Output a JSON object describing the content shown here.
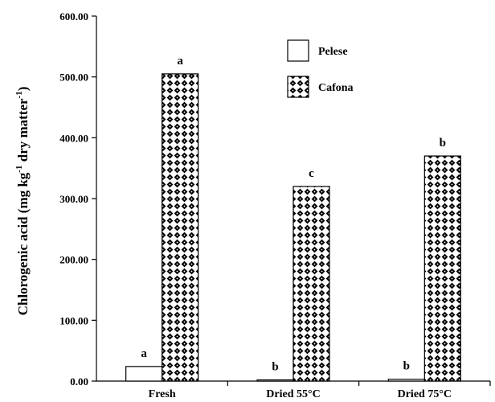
{
  "chart_data": {
    "type": "bar",
    "title": "",
    "xlabel": "",
    "ylabel": "Chlorogenic acid (mg kg",
    "ylabel_sup": "-1",
    "ylabel_tail": " dry matter",
    "ylabel_tail_sup": "-1",
    "ylabel_close": ")",
    "ylim": [
      0,
      600
    ],
    "yticks": [
      0,
      100,
      200,
      300,
      400,
      500,
      600
    ],
    "ytick_labels": [
      "0.00",
      "100.00",
      "200.00",
      "300.00",
      "400.00",
      "500.00",
      "600.00"
    ],
    "categories": [
      "Fresh",
      "Dried 55°C",
      "Dried 75°C"
    ],
    "series": [
      {
        "name": "Pelese",
        "values": [
          24,
          2,
          3
        ],
        "letters": [
          "a",
          "b",
          "b"
        ],
        "fill": "white"
      },
      {
        "name": "Cafona",
        "values": [
          505,
          320,
          370
        ],
        "letters": [
          "a",
          "c",
          "b"
        ],
        "fill": "pattern"
      }
    ],
    "legend_position": "top-right",
    "grid": false,
    "colors": {
      "axis": "#000000",
      "bar_stroke": "#000000",
      "pattern_fg": "#000000",
      "pattern_bg": "#ffffff"
    }
  }
}
